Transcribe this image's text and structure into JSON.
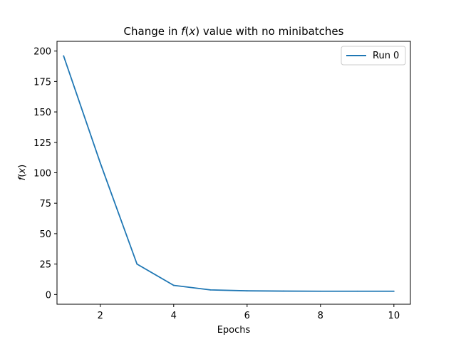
{
  "chart_data": {
    "type": "line",
    "title": {
      "prefix": "Change in ",
      "fn": "f",
      "open": "(",
      "var": "x",
      "close": ")",
      "suffix": " value with no minibatches"
    },
    "xlabel": "Epochs",
    "ylabel": {
      "fn": "f",
      "open": "(",
      "var": "x",
      "close": ")"
    },
    "xlim": [
      0.82,
      10.45
    ],
    "ylim": [
      -8,
      208
    ],
    "xticks": [
      2,
      4,
      6,
      8,
      10
    ],
    "yticks": [
      0,
      25,
      50,
      75,
      100,
      125,
      150,
      175,
      200
    ],
    "grid": false,
    "legend_position": "upper right",
    "x": [
      1,
      2,
      3,
      4,
      5,
      6,
      7,
      8,
      9,
      10
    ],
    "series": [
      {
        "name": "Run 0",
        "color": "#1f77b4",
        "values": [
          196,
          108,
          25,
          7.5,
          3.8,
          3.0,
          2.8,
          2.7,
          2.7,
          2.7
        ]
      }
    ]
  }
}
